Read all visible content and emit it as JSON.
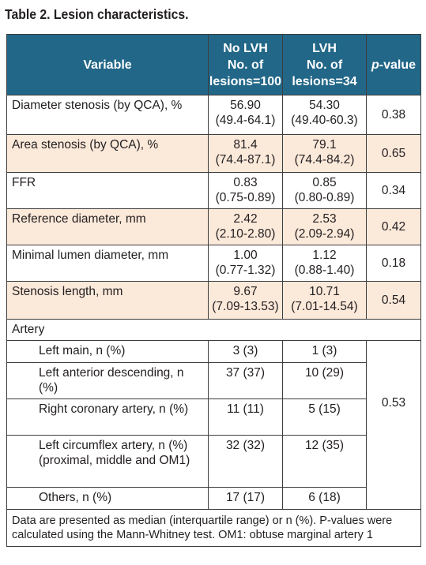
{
  "title": "Table 2. Lesion characteristics.",
  "header": {
    "variable": "Variable",
    "col1": [
      "No LVH",
      "No. of",
      "lesions=100"
    ],
    "col2": [
      "LVH",
      "No. of",
      "lesions=34"
    ],
    "pvalue_italic": "p",
    "pvalue_rest": "-value"
  },
  "rows": [
    {
      "label": "Diameter stenosis (by QCA), %",
      "a": [
        "56.90",
        "(49.4-64.1)"
      ],
      "b": [
        "54.30",
        "(49.40-60.3)"
      ],
      "p": "0.38"
    },
    {
      "label": "Area stenosis (by QCA), %",
      "a": [
        "81.4",
        "(74.4-87.1)"
      ],
      "b": [
        "79.1",
        "(74.4-84.2)"
      ],
      "p": "0.65"
    },
    {
      "label": "FFR",
      "a": [
        "0.83",
        "(0.75-0.89)"
      ],
      "b": [
        "0.85",
        "(0.80-0.89)"
      ],
      "p": "0.34"
    },
    {
      "label": "Reference diameter, mm",
      "a": [
        "2.42",
        "(2.10-2.80)"
      ],
      "b": [
        "2.53",
        "(2.09-2.94)"
      ],
      "p": "0.42"
    },
    {
      "label": "Minimal lumen diameter, mm",
      "a": [
        "1.00",
        "(0.77-1.32)"
      ],
      "b": [
        "1.12",
        "(0.88-1.40)"
      ],
      "p": "0.18"
    },
    {
      "label": "Stenosis length, mm",
      "a": [
        "9.67",
        "(7.09-13.53)"
      ],
      "b": [
        "10.71",
        "(7.01-14.54)"
      ],
      "p": "0.54"
    }
  ],
  "artery": {
    "label": "Artery",
    "p": "0.53",
    "rows": [
      {
        "label": "Left main, n (%)",
        "a": "3 (3)",
        "b": "1 (3)"
      },
      {
        "label": "Left anterior descending, n (%)",
        "a": "37 (37)",
        "b": "10 (29)"
      },
      {
        "label": "Right coronary artery, n (%)",
        "a": "11 (11)",
        "b": "5 (15)"
      },
      {
        "label": "Left circumflex artery, n (%) (proximal, middle and OM1)",
        "a": "32 (32)",
        "b": "12 (35)"
      },
      {
        "label": "Others, n (%)",
        "a": "17 (17)",
        "b": "6 (18)"
      }
    ]
  },
  "footnote": "Data are presented as median (interquartile range) or n (%). P-values were calculated using the Mann-Whitney test. OM1: obtuse marginal artery 1"
}
